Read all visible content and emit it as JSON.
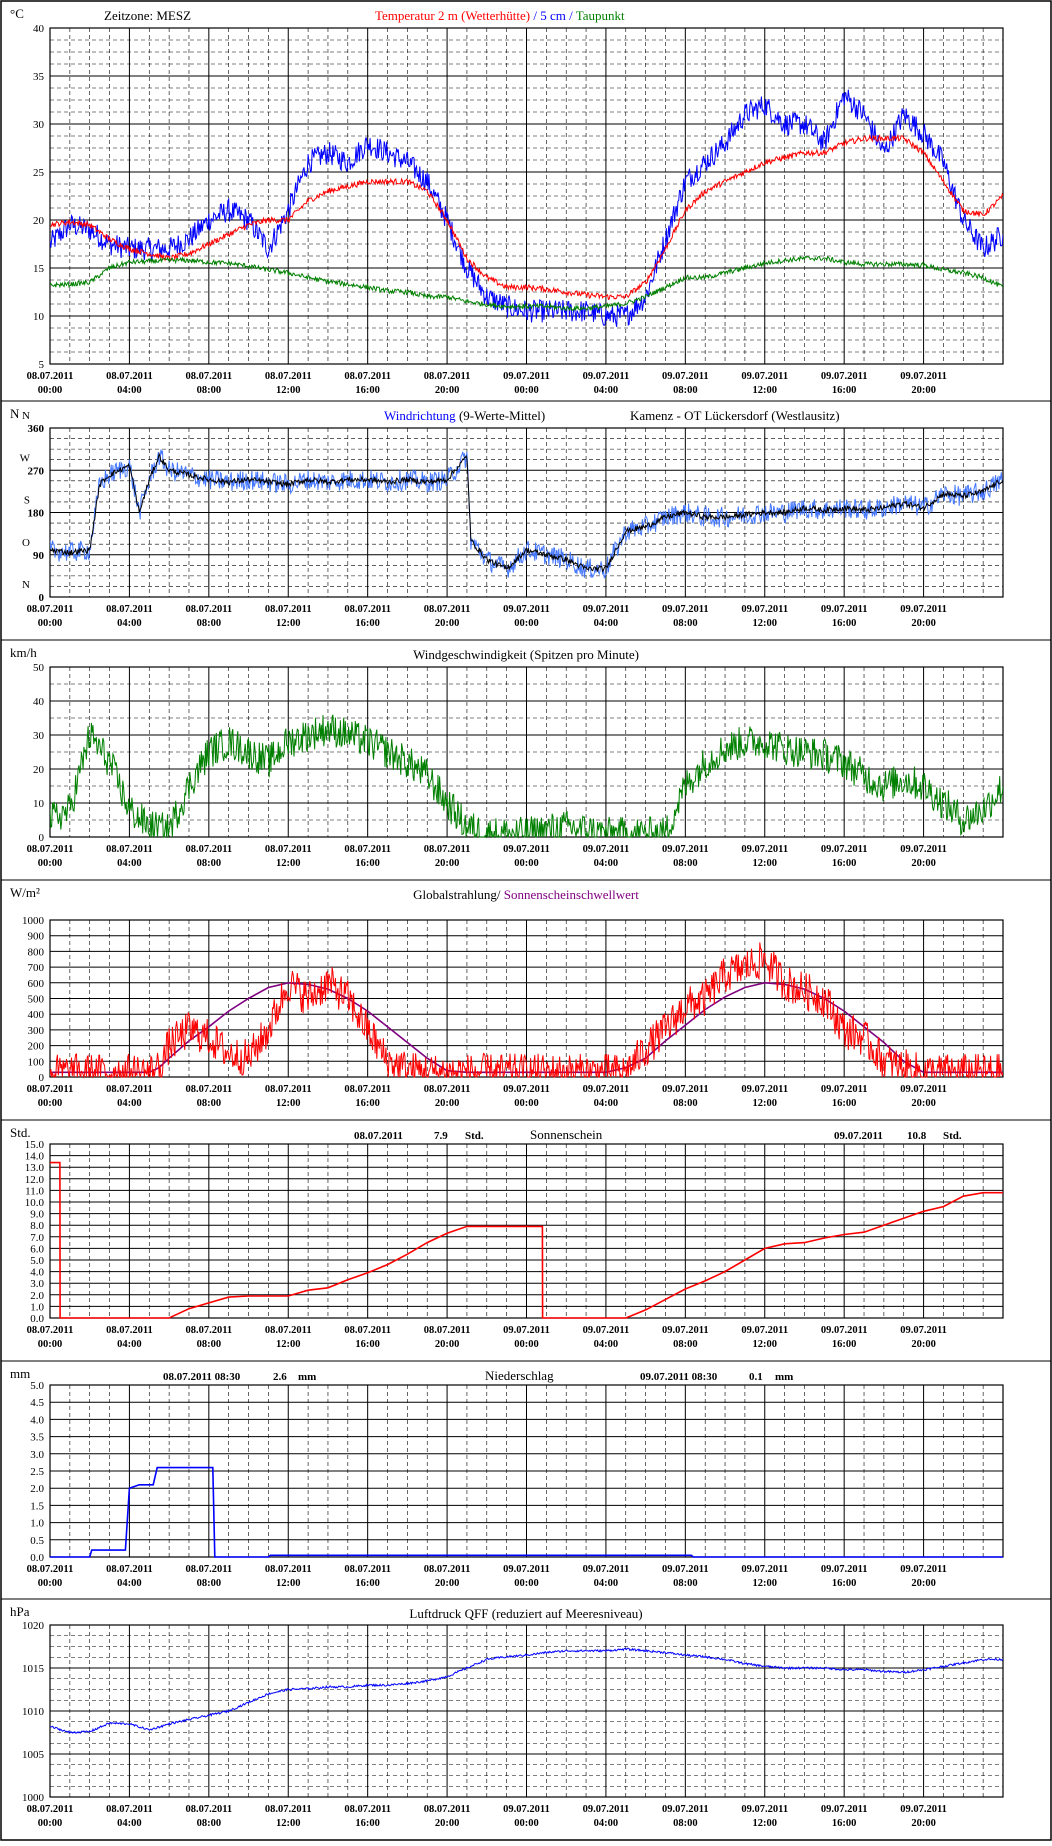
{
  "x_labels": [
    {
      "d": "08.07.2011",
      "t": "00:00"
    },
    {
      "d": "08.07.2011",
      "t": "04:00"
    },
    {
      "d": "08.07.2011",
      "t": "08:00"
    },
    {
      "d": "08.07.2011",
      "t": "12:00"
    },
    {
      "d": "08.07.2011",
      "t": "16:00"
    },
    {
      "d": "08.07.2011",
      "t": "20:00"
    },
    {
      "d": "09.07.2011",
      "t": "00:00"
    },
    {
      "d": "09.07.2011",
      "t": "04:00"
    },
    {
      "d": "09.07.2011",
      "t": "08:00"
    },
    {
      "d": "09.07.2011",
      "t": "12:00"
    },
    {
      "d": "09.07.2011",
      "t": "16:00"
    },
    {
      "d": "09.07.2011",
      "t": "20:00"
    }
  ],
  "chart_data": [
    {
      "id": "temp",
      "type": "line",
      "unit": "°C",
      "ylim": [
        5,
        40
      ],
      "y_ticks": [
        5,
        10,
        15,
        20,
        25,
        30,
        35,
        40
      ],
      "headers": [
        {
          "text": "Zeitzone: MESZ",
          "color": "#000000"
        },
        {
          "text": "Temperatur 2 m (Wetterhütte)",
          "color": "#ff0000"
        },
        {
          "text": " / ",
          "color": "#0000ff"
        },
        {
          "text": "5 cm",
          "color": "#0000ff"
        },
        {
          "text": " / ",
          "color": "#0000ff"
        },
        {
          "text": "Taupunkt",
          "color": "#008000"
        }
      ],
      "x_hours": [
        0,
        1,
        2,
        3,
        4,
        5,
        6,
        7,
        8,
        9,
        10,
        11,
        12,
        13,
        14,
        15,
        16,
        17,
        18,
        19,
        20,
        21,
        22,
        23,
        24,
        25,
        26,
        27,
        28,
        29,
        30,
        31,
        32,
        33,
        34,
        35,
        36,
        37,
        38,
        39,
        40,
        41,
        42,
        43,
        44,
        45,
        46,
        47,
        48
      ],
      "series": [
        {
          "color": "#0000ff",
          "noise": 1.2,
          "values": [
            17.5,
            19.5,
            19,
            17.5,
            17,
            17,
            17,
            18,
            20,
            21,
            20,
            17,
            21,
            26,
            27,
            26,
            28,
            27,
            26,
            24,
            20,
            15,
            12,
            11,
            10.5,
            10.5,
            10.5,
            10.5,
            10,
            10,
            12,
            18,
            24,
            26,
            28,
            31,
            32,
            30,
            30,
            28,
            33,
            31,
            27,
            31,
            29,
            26,
            20,
            17,
            18.5
          ]
        },
        {
          "color": "#ff0000",
          "noise": 0.3,
          "values": [
            19.5,
            19.8,
            19.5,
            18,
            17,
            16.5,
            16,
            16.5,
            17.5,
            18.5,
            19.5,
            20,
            20,
            22,
            23,
            23.5,
            24,
            24,
            24,
            23,
            20,
            16,
            14,
            13,
            13,
            12.8,
            12.5,
            12.2,
            12,
            12,
            13.5,
            17,
            21,
            23,
            24,
            25,
            26,
            26.5,
            27,
            27,
            28,
            28.5,
            28.5,
            28.5,
            27,
            24,
            21,
            20.5,
            22.5
          ]
        },
        {
          "color": "#008000",
          "noise": 0.25,
          "values": [
            13.2,
            13.3,
            13.5,
            15,
            15.6,
            15.7,
            15.8,
            15.8,
            15.6,
            15.5,
            15.2,
            14.8,
            14.5,
            14,
            13.6,
            13.3,
            13,
            12.6,
            12.5,
            12,
            12,
            11.5,
            11.2,
            11,
            11,
            11,
            10.8,
            10.8,
            11,
            11.3,
            12,
            13,
            14,
            14,
            14.5,
            15,
            15.5,
            15.8,
            16,
            16,
            15.6,
            15.4,
            15.4,
            15.4,
            15.3,
            14.8,
            14.5,
            14,
            13
          ]
        }
      ]
    },
    {
      "id": "wdir",
      "type": "line",
      "unit": "N",
      "ylim": [
        0,
        360
      ],
      "y_ticks": [
        0,
        90,
        180,
        270,
        360
      ],
      "y_side_labels": [
        {
          "v": 0,
          "t": "N"
        },
        {
          "v": 90,
          "t": "O"
        },
        {
          "v": 180,
          "t": "S"
        },
        {
          "v": 270,
          "t": "W"
        },
        {
          "v": 360,
          "t": "N"
        }
      ],
      "headers": [
        {
          "text": "Windrichtung",
          "color": "#0000ff"
        },
        {
          "text": " (9-Werte-Mittel)",
          "color": "#000000"
        },
        {
          "text": "Kamenz - OT Lückersdorf (Westlausitz)",
          "color": "#000000"
        }
      ],
      "x_hours": [
        0,
        1,
        2,
        2.5,
        3,
        4,
        4.5,
        5,
        5.5,
        6,
        7,
        8,
        9,
        10,
        11,
        12,
        13,
        14,
        15,
        16,
        17,
        18,
        19,
        20,
        21,
        21.2,
        22,
        23,
        24,
        25,
        26,
        27,
        28,
        29,
        30,
        31,
        32,
        33,
        34,
        35,
        36,
        37,
        38,
        39,
        40,
        41,
        42,
        43,
        44,
        45,
        46,
        47,
        48
      ],
      "series": [
        {
          "color": "#4477ff",
          "noise": 22,
          "values": [
            100,
            95,
            100,
            240,
            260,
            280,
            180,
            250,
            300,
            270,
            260,
            250,
            245,
            250,
            245,
            240,
            250,
            245,
            250,
            250,
            245,
            250,
            245,
            250,
            300,
            120,
            80,
            60,
            100,
            90,
            80,
            60,
            60,
            140,
            150,
            170,
            180,
            170,
            170,
            175,
            180,
            180,
            190,
            185,
            190,
            185,
            190,
            200,
            190,
            220,
            215,
            225,
            250
          ]
        },
        {
          "color": "#000000",
          "noise": 6,
          "values": [
            100,
            95,
            100,
            240,
            260,
            280,
            180,
            250,
            300,
            270,
            260,
            250,
            245,
            250,
            245,
            240,
            250,
            245,
            250,
            250,
            245,
            250,
            245,
            250,
            300,
            120,
            80,
            60,
            100,
            90,
            80,
            60,
            60,
            140,
            150,
            170,
            180,
            170,
            170,
            175,
            180,
            180,
            190,
            185,
            190,
            185,
            190,
            200,
            190,
            220,
            215,
            225,
            250
          ]
        }
      ]
    },
    {
      "id": "wspd",
      "type": "line",
      "unit": "km/h",
      "ylim": [
        0,
        50
      ],
      "y_ticks": [
        0,
        10,
        20,
        30,
        40,
        50
      ],
      "headers": [
        {
          "text": "Windgeschwindigkeit (Spitzen pro Minute)",
          "color": "#000000"
        }
      ],
      "x_hours": [
        0,
        1,
        2,
        3,
        4,
        5,
        6,
        7,
        8,
        9,
        10,
        11,
        12,
        13,
        14,
        15,
        16,
        17,
        18,
        19,
        20,
        21,
        22,
        23,
        24,
        25,
        26,
        27,
        28,
        29,
        30,
        31,
        32,
        33,
        34,
        35,
        36,
        37,
        38,
        39,
        40,
        41,
        42,
        43,
        44,
        45,
        46,
        47,
        48
      ],
      "series": [
        {
          "color": "#008000",
          "noise": 5,
          "values": [
            5,
            8,
            30,
            22,
            8,
            3,
            2,
            15,
            25,
            28,
            25,
            22,
            28,
            30,
            32,
            30,
            28,
            25,
            22,
            18,
            10,
            3,
            1,
            1,
            1,
            2,
            3,
            2,
            1,
            1,
            1,
            1,
            15,
            22,
            26,
            28,
            28,
            26,
            25,
            24,
            22,
            18,
            15,
            17,
            15,
            10,
            5,
            8,
            15
          ]
        }
      ]
    },
    {
      "id": "rad",
      "type": "line",
      "unit": "W/m²",
      "ylim": [
        0,
        1000
      ],
      "y_ticks": [
        0,
        100,
        200,
        300,
        400,
        500,
        600,
        700,
        800,
        900,
        1000
      ],
      "headers": [
        {
          "text": "Globalstrahlung/ ",
          "color": "#000000"
        },
        {
          "text": "Sonnenscheinschwellwert",
          "color": "#800080"
        }
      ],
      "x_hours": [
        0,
        1,
        2,
        3,
        4,
        5,
        5.5,
        6,
        7,
        8,
        9,
        10,
        11,
        12,
        13,
        14,
        15,
        16,
        17,
        18,
        19,
        20,
        21,
        22,
        23,
        24,
        25,
        26,
        27,
        28,
        29,
        30,
        31,
        32,
        33,
        34,
        35,
        36,
        37,
        38,
        39,
        40,
        41,
        42,
        43,
        44,
        45,
        46,
        47,
        48
      ],
      "series": [
        {
          "color": "#800080",
          "noise": 0,
          "values": [
            30,
            30,
            30,
            30,
            30,
            30,
            60,
            120,
            230,
            320,
            420,
            500,
            570,
            600,
            590,
            560,
            500,
            420,
            320,
            220,
            120,
            40,
            30,
            30,
            30,
            30,
            30,
            30,
            30,
            30,
            60,
            120,
            230,
            330,
            430,
            510,
            570,
            600,
            590,
            560,
            500,
            420,
            320,
            220,
            100,
            30,
            30,
            30,
            30,
            30
          ]
        },
        {
          "color": "#ff0000",
          "noise": 120,
          "values": [
            30,
            30,
            30,
            30,
            30,
            30,
            60,
            200,
            300,
            250,
            150,
            120,
            300,
            600,
            500,
            600,
            500,
            300,
            100,
            50,
            30,
            30,
            30,
            30,
            30,
            30,
            30,
            30,
            30,
            30,
            30,
            180,
            300,
            450,
            500,
            650,
            700,
            750,
            600,
            550,
            500,
            300,
            250,
            100,
            60,
            30,
            30,
            30,
            30,
            30
          ]
        }
      ]
    },
    {
      "id": "sun",
      "type": "line",
      "unit": "Std.",
      "ylim": [
        0,
        15
      ],
      "y_ticks": [
        0,
        1,
        2,
        3,
        4,
        5,
        6,
        7,
        8,
        9,
        10,
        11,
        12,
        13,
        14,
        15
      ],
      "tick_decimals": 1,
      "headers": [
        {
          "text": "08.07.2011",
          "color": "#000000"
        },
        {
          "text": "7.9",
          "color": "#000000"
        },
        {
          "text": "Std.",
          "color": "#000000"
        },
        {
          "text": "Sonnenschein",
          "color": "#000000"
        },
        {
          "text": "09.07.2011",
          "color": "#000000"
        },
        {
          "text": "10.8",
          "color": "#000000"
        },
        {
          "text": "Std.",
          "color": "#000000"
        }
      ],
      "x_hours": [
        0,
        0.5,
        0.51,
        6,
        7,
        8,
        9,
        10,
        12,
        13,
        14,
        15,
        16,
        17,
        18,
        19,
        20,
        21,
        22,
        24.8,
        24.81,
        29,
        30,
        31,
        32,
        33,
        34,
        35,
        36,
        37,
        38,
        39,
        40,
        41,
        42,
        43,
        44,
        45,
        46,
        47,
        48
      ],
      "series": [
        {
          "color": "#ff0000",
          "noise": 0,
          "values": [
            13.4,
            13.4,
            0,
            0,
            0.8,
            1.3,
            1.8,
            1.9,
            1.9,
            2.4,
            2.6,
            3.3,
            3.9,
            4.6,
            5.5,
            6.5,
            7.3,
            7.9,
            7.9,
            7.9,
            0,
            0,
            0.7,
            1.6,
            2.5,
            3.2,
            4.0,
            5.0,
            6.0,
            6.4,
            6.5,
            6.9,
            7.2,
            7.4,
            8.0,
            8.6,
            9.2,
            9.6,
            10.5,
            10.8,
            10.8
          ]
        }
      ]
    },
    {
      "id": "rain",
      "type": "line",
      "unit": "mm",
      "ylim": [
        0,
        5
      ],
      "y_ticks": [
        0,
        0.5,
        1,
        1.5,
        2,
        2.5,
        3,
        3.5,
        4,
        4.5,
        5
      ],
      "tick_decimals": 1,
      "headers": [
        {
          "text": "08.07.2011 08:30",
          "color": "#000000"
        },
        {
          "text": "2.6",
          "color": "#000000"
        },
        {
          "text": "mm",
          "color": "#000000"
        },
        {
          "text": "Niederschlag",
          "color": "#000000"
        },
        {
          "text": "09.07.2011 08:30",
          "color": "#000000"
        },
        {
          "text": "0.1",
          "color": "#000000"
        },
        {
          "text": "mm",
          "color": "#000000"
        }
      ],
      "x_hours": [
        0,
        2,
        2.1,
        3.8,
        4.0,
        4.5,
        5.2,
        5.4,
        8.2,
        8.3,
        11,
        11.1,
        32.3,
        32.4,
        48
      ],
      "series": [
        {
          "color": "#0000ff",
          "noise": 0,
          "values": [
            0,
            0,
            0.2,
            0.2,
            2.0,
            2.1,
            2.1,
            2.6,
            2.6,
            0,
            0,
            0.05,
            0.05,
            0,
            0
          ]
        }
      ]
    },
    {
      "id": "press",
      "type": "line",
      "unit": "hPa",
      "ylim": [
        1000,
        1020
      ],
      "y_ticks": [
        1000,
        1005,
        1010,
        1015,
        1020
      ],
      "headers": [
        {
          "text": "Luftdruck QFF (reduziert auf Meeresniveau)",
          "color": "#000000"
        }
      ],
      "x_hours": [
        0,
        1,
        2,
        3,
        4,
        5,
        6,
        7,
        8,
        9,
        10,
        11,
        12,
        13,
        14,
        15,
        16,
        17,
        18,
        19,
        20,
        21,
        22,
        23,
        24,
        25,
        26,
        27,
        28,
        29,
        30,
        31,
        32,
        33,
        34,
        35,
        36,
        37,
        38,
        39,
        40,
        41,
        42,
        43,
        44,
        45,
        46,
        47,
        48
      ],
      "series": [
        {
          "color": "#0000ff",
          "noise": 0.12,
          "values": [
            1008.2,
            1007.5,
            1007.6,
            1008.6,
            1008.5,
            1007.8,
            1008.5,
            1009,
            1009.5,
            1010,
            1011,
            1012,
            1012.5,
            1012.6,
            1012.8,
            1012.8,
            1013,
            1013,
            1013.2,
            1013.5,
            1014,
            1015,
            1016,
            1016.3,
            1016.5,
            1016.8,
            1017,
            1017,
            1017,
            1017.2,
            1017,
            1016.8,
            1016.5,
            1016.3,
            1016,
            1015.5,
            1015.2,
            1015,
            1015,
            1015,
            1014.8,
            1014.8,
            1014.6,
            1014.5,
            1014.8,
            1015.2,
            1015.6,
            1016,
            1016
          ]
        }
      ]
    }
  ]
}
